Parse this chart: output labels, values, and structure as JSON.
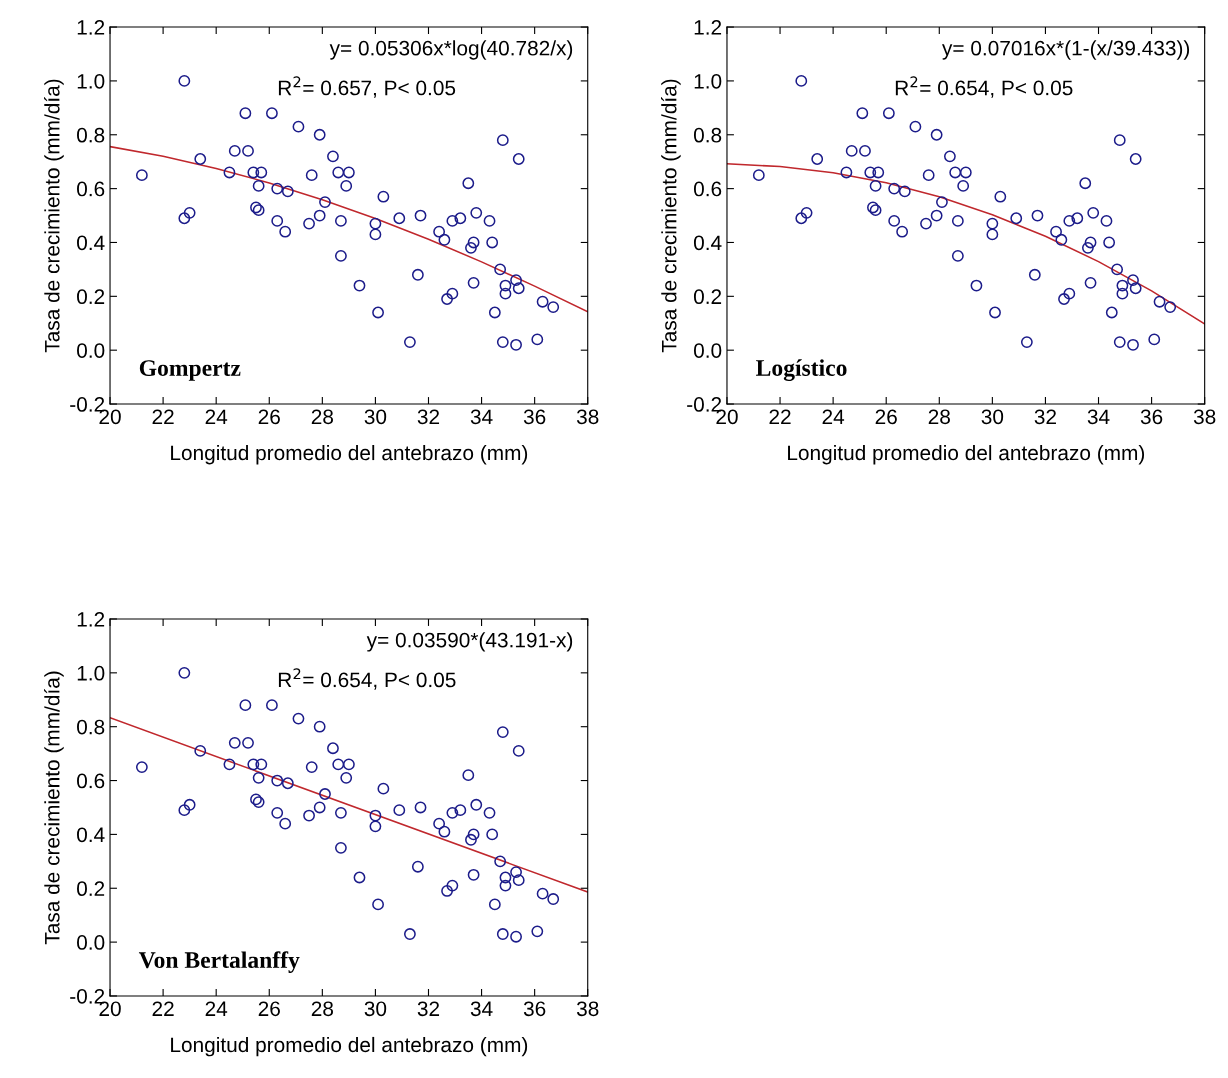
{
  "chart_data": [
    {
      "type": "scatter",
      "xlabel": "Longitud promedio del antebrazo (mm)",
      "ylabel": "Tasa de crecimiento (mm/día)",
      "xlim": [
        20,
        38
      ],
      "xticks": [
        20,
        22,
        24,
        26,
        28,
        30,
        32,
        34,
        36,
        38
      ],
      "ylim": [
        -0.2,
        1.2
      ],
      "yticks": [
        {
          "value": -0.2,
          "label": "-0.2"
        },
        {
          "value": 0.0,
          "label": "0.0"
        },
        {
          "value": 0.2,
          "label": "0.2"
        },
        {
          "value": 0.4,
          "label": "0.4"
        },
        {
          "value": 0.6,
          "label": "0.6"
        },
        {
          "value": 0.8,
          "label": "0.8"
        },
        {
          "value": 1.0,
          "label": "1.0"
        },
        {
          "value": 1.2,
          "label": "1.2"
        }
      ],
      "grid": false,
      "legend": false,
      "annotations": [
        "y= 0.05306x*log(40.782/x)",
        "R$^{2}$= 0.657, P< 0.05",
        "Gompertz"
      ],
      "series": [
        {
          "marker": "circle",
          "color": "#1c1c8a",
          "x": [
            21.2,
            22.8,
            22.8,
            23.0,
            23.4,
            24.5,
            24.7,
            25.1,
            25.2,
            25.4,
            25.5,
            25.6,
            25.6,
            25.7,
            26.1,
            26.3,
            26.3,
            26.6,
            26.7,
            27.1,
            27.5,
            27.6,
            27.9,
            27.9,
            28.1,
            28.4,
            28.6,
            28.7,
            28.7,
            28.9,
            29.0,
            29.4,
            30.0,
            30.0,
            30.1,
            30.3,
            30.9,
            31.3,
            31.6,
            31.7,
            32.4,
            32.6,
            32.7,
            32.9,
            32.9,
            33.2,
            33.5,
            33.6,
            33.7,
            33.8,
            33.7,
            34.3,
            34.4,
            34.5,
            34.7,
            34.8,
            34.8,
            34.9,
            34.9,
            35.3,
            35.3,
            35.4,
            35.4,
            36.1,
            36.3,
            36.7
          ],
          "values": [
            0.65,
            1.0,
            0.49,
            0.51,
            0.71,
            0.66,
            0.74,
            0.88,
            0.74,
            0.66,
            0.53,
            0.52,
            0.61,
            0.66,
            0.88,
            0.6,
            0.48,
            0.44,
            0.59,
            0.83,
            0.47,
            0.65,
            0.8,
            0.5,
            0.55,
            0.72,
            0.66,
            0.48,
            0.35,
            0.61,
            0.66,
            0.24,
            0.47,
            0.43,
            0.14,
            0.57,
            0.49,
            0.03,
            0.28,
            0.5,
            0.44,
            0.41,
            0.19,
            0.21,
            0.48,
            0.49,
            0.62,
            0.38,
            0.4,
            0.51,
            0.25,
            0.48,
            0.4,
            0.14,
            0.3,
            0.03,
            0.78,
            0.24,
            0.21,
            0.02,
            0.26,
            0.23,
            0.71,
            0.04,
            0.18,
            0.16
          ]
        },
        {
          "type": "line",
          "color": "#c0282d",
          "x": [
            20,
            22,
            24,
            26,
            28,
            30,
            32,
            34,
            36,
            38
          ],
          "values": [
            0.756,
            0.72,
            0.675,
            0.621,
            0.559,
            0.489,
            0.412,
            0.328,
            0.238,
            0.143
          ]
        }
      ]
    },
    {
      "type": "scatter",
      "xlabel": "Longitud promedio del antebrazo (mm)",
      "ylabel": "Tasa de crecimiento (mm/día)",
      "xlim": [
        20,
        38
      ],
      "xticks": [
        20,
        22,
        24,
        26,
        28,
        30,
        32,
        34,
        36,
        38
      ],
      "ylim": [
        -0.2,
        1.2
      ],
      "yticks": [
        {
          "value": -0.2,
          "label": "-0.2"
        },
        {
          "value": 0.0,
          "label": "0.0"
        },
        {
          "value": 0.2,
          "label": "0.2"
        },
        {
          "value": 0.4,
          "label": "0.4"
        },
        {
          "value": 0.6,
          "label": "0.6"
        },
        {
          "value": 0.8,
          "label": "0.8"
        },
        {
          "value": 1.0,
          "label": "1.0"
        },
        {
          "value": 1.2,
          "label": "1.2"
        }
      ],
      "grid": false,
      "legend": false,
      "annotations": [
        "y= 0.07016x*(1-(x/39.433))",
        "R$^{2}$= 0.654, P< 0.05",
        "Logístico"
      ],
      "series": [
        {
          "marker": "circle",
          "color": "#1c1c8a",
          "x": [
            21.2,
            22.8,
            22.8,
            23.0,
            23.4,
            24.5,
            24.7,
            25.1,
            25.2,
            25.4,
            25.5,
            25.6,
            25.6,
            25.7,
            26.1,
            26.3,
            26.3,
            26.6,
            26.7,
            27.1,
            27.5,
            27.6,
            27.9,
            27.9,
            28.1,
            28.4,
            28.6,
            28.7,
            28.7,
            28.9,
            29.0,
            29.4,
            30.0,
            30.0,
            30.1,
            30.3,
            30.9,
            31.3,
            31.6,
            31.7,
            32.4,
            32.6,
            32.7,
            32.9,
            32.9,
            33.2,
            33.5,
            33.6,
            33.7,
            33.8,
            33.7,
            34.3,
            34.4,
            34.5,
            34.7,
            34.8,
            34.8,
            34.9,
            34.9,
            35.3,
            35.3,
            35.4,
            35.4,
            36.1,
            36.3,
            36.7
          ],
          "values": [
            0.65,
            1.0,
            0.49,
            0.51,
            0.71,
            0.66,
            0.74,
            0.88,
            0.74,
            0.66,
            0.53,
            0.52,
            0.61,
            0.66,
            0.88,
            0.6,
            0.48,
            0.44,
            0.59,
            0.83,
            0.47,
            0.65,
            0.8,
            0.5,
            0.55,
            0.72,
            0.66,
            0.48,
            0.35,
            0.61,
            0.66,
            0.24,
            0.47,
            0.43,
            0.14,
            0.57,
            0.49,
            0.03,
            0.28,
            0.5,
            0.44,
            0.41,
            0.19,
            0.21,
            0.48,
            0.49,
            0.62,
            0.38,
            0.4,
            0.51,
            0.25,
            0.48,
            0.4,
            0.14,
            0.3,
            0.03,
            0.78,
            0.24,
            0.21,
            0.02,
            0.26,
            0.23,
            0.71,
            0.04,
            0.18,
            0.16
          ]
        },
        {
          "type": "line",
          "color": "#c0282d",
          "x": [
            20,
            22,
            24,
            26,
            28,
            30,
            32,
            34,
            36,
            38
          ],
          "values": [
            0.692,
            0.682,
            0.659,
            0.622,
            0.57,
            0.503,
            0.423,
            0.329,
            0.22,
            0.097
          ]
        }
      ]
    },
    {
      "type": "scatter",
      "xlabel": "Longitud promedio del antebrazo (mm)",
      "ylabel": "Tasa de crecimiento (mm/día)",
      "xlim": [
        20,
        38
      ],
      "xticks": [
        20,
        22,
        24,
        26,
        28,
        30,
        32,
        34,
        36,
        38
      ],
      "ylim": [
        -0.2,
        1.2
      ],
      "yticks": [
        {
          "value": -0.2,
          "label": "-0.2"
        },
        {
          "value": 0.0,
          "label": "0.0"
        },
        {
          "value": 0.2,
          "label": "0.2"
        },
        {
          "value": 0.4,
          "label": "0.4"
        },
        {
          "value": 0.6,
          "label": "0.6"
        },
        {
          "value": 0.8,
          "label": "0.8"
        },
        {
          "value": 1.0,
          "label": "1.0"
        },
        {
          "value": 1.2,
          "label": "1.2"
        }
      ],
      "grid": false,
      "legend": false,
      "annotations": [
        "y= 0.03590*(43.191-x)",
        "R$^{2}$= 0.654, P< 0.05",
        "Von Bertalanffy"
      ],
      "series": [
        {
          "marker": "circle",
          "color": "#1c1c8a",
          "x": [
            21.2,
            22.8,
            22.8,
            23.0,
            23.4,
            24.5,
            24.7,
            25.1,
            25.2,
            25.4,
            25.5,
            25.6,
            25.6,
            25.7,
            26.1,
            26.3,
            26.3,
            26.6,
            26.7,
            27.1,
            27.5,
            27.6,
            27.9,
            27.9,
            28.1,
            28.4,
            28.6,
            28.7,
            28.7,
            28.9,
            29.0,
            29.4,
            30.0,
            30.0,
            30.1,
            30.3,
            30.9,
            31.3,
            31.6,
            31.7,
            32.4,
            32.6,
            32.7,
            32.9,
            32.9,
            33.2,
            33.5,
            33.6,
            33.7,
            33.8,
            33.7,
            34.3,
            34.4,
            34.5,
            34.7,
            34.8,
            34.8,
            34.9,
            34.9,
            35.3,
            35.3,
            35.4,
            35.4,
            36.1,
            36.3,
            36.7
          ],
          "values": [
            0.65,
            1.0,
            0.49,
            0.51,
            0.71,
            0.66,
            0.74,
            0.88,
            0.74,
            0.66,
            0.53,
            0.52,
            0.61,
            0.66,
            0.88,
            0.6,
            0.48,
            0.44,
            0.59,
            0.83,
            0.47,
            0.65,
            0.8,
            0.5,
            0.55,
            0.72,
            0.66,
            0.48,
            0.35,
            0.61,
            0.66,
            0.24,
            0.47,
            0.43,
            0.14,
            0.57,
            0.49,
            0.03,
            0.28,
            0.5,
            0.44,
            0.41,
            0.19,
            0.21,
            0.48,
            0.49,
            0.62,
            0.38,
            0.4,
            0.51,
            0.25,
            0.48,
            0.4,
            0.14,
            0.3,
            0.03,
            0.78,
            0.24,
            0.21,
            0.02,
            0.26,
            0.23,
            0.71,
            0.04,
            0.18,
            0.16
          ]
        },
        {
          "type": "line",
          "color": "#c0282d",
          "x": [
            20,
            38
          ],
          "values": [
            0.833,
            0.186
          ]
        }
      ]
    }
  ]
}
